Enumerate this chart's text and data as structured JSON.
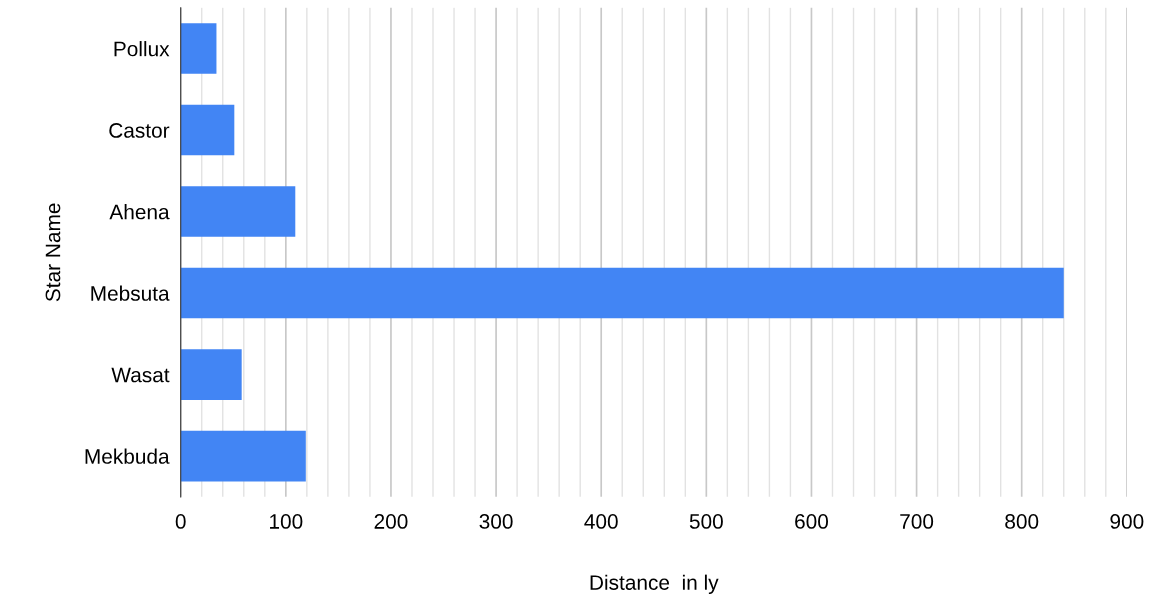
{
  "chart_data": {
    "type": "bar",
    "orientation": "horizontal",
    "xlabel": "Distance  in ly",
    "ylabel": "Star Name",
    "categories": [
      "Pollux",
      "Castor",
      "Ahena",
      "Mebsuta",
      "Wasat",
      "Mekbuda"
    ],
    "values": [
      34,
      51,
      109,
      840,
      58,
      119
    ],
    "color": "#4285f4",
    "xlim": [
      0,
      900
    ],
    "xticks": [
      0,
      {
        "value": 20,
        "label": null
      },
      {
        "value": 40,
        "label": null
      },
      {
        "value": 60,
        "label": null
      },
      {
        "value": 80,
        "label": null
      },
      100,
      {
        "value": 120,
        "label": null
      },
      {
        "value": 140,
        "label": null
      },
      {
        "value": 160,
        "label": null
      },
      {
        "value": 180,
        "label": null
      },
      200,
      {
        "value": 220,
        "label": null
      },
      {
        "value": 240,
        "label": null
      },
      {
        "value": 260,
        "label": null
      },
      {
        "value": 280,
        "label": null
      },
      300,
      {
        "value": 320,
        "label": null
      },
      {
        "value": 340,
        "label": null
      },
      {
        "value": 360,
        "label": null
      },
      {
        "value": 380,
        "label": null
      },
      400,
      {
        "value": 420,
        "label": null
      },
      {
        "value": 440,
        "label": null
      },
      {
        "value": 460,
        "label": null
      },
      {
        "value": 480,
        "label": null
      },
      500,
      {
        "value": 520,
        "label": null
      },
      {
        "value": 540,
        "label": null
      },
      {
        "value": 560,
        "label": null
      },
      {
        "value": 580,
        "label": null
      },
      600,
      {
        "value": 620,
        "label": null
      },
      {
        "value": 640,
        "label": null
      },
      {
        "value": 660,
        "label": null
      },
      {
        "value": 680,
        "label": null
      },
      700,
      {
        "value": 720,
        "label": null
      },
      {
        "value": 740,
        "label": null
      },
      {
        "value": 760,
        "label": null
      },
      {
        "value": 780,
        "label": null
      },
      800,
      {
        "value": 820,
        "label": null
      },
      {
        "value": 840,
        "label": null
      },
      {
        "value": 860,
        "label": null
      },
      {
        "value": 880,
        "label": null
      },
      900
    ],
    "grid": "x"
  }
}
